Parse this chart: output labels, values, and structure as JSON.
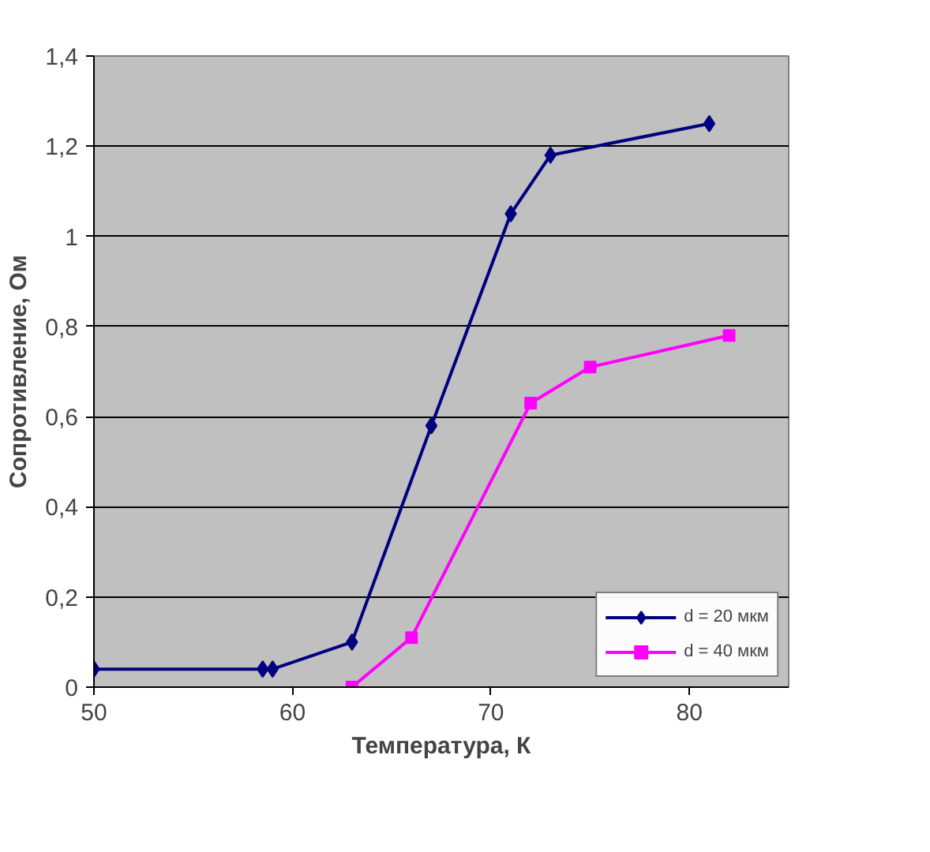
{
  "chart_data": {
    "type": "line",
    "xlabel": "Температура, К",
    "ylabel": "Сопротивление, Ом",
    "xlim": [
      50,
      85
    ],
    "xticks": [
      50,
      60,
      70,
      80
    ],
    "ylim": [
      0,
      1.4
    ],
    "yticks": [
      0,
      {
        "value": 0.2,
        "label": "0,2"
      },
      {
        "value": 0.4,
        "label": "0,4"
      },
      {
        "value": 0.6,
        "label": "0,6"
      },
      {
        "value": 0.8,
        "label": "0,8"
      },
      1,
      {
        "value": 1.2,
        "label": "1,2"
      },
      {
        "value": 1.4,
        "label": "1,4"
      }
    ],
    "grid": "y",
    "legend": "bottom right",
    "line_style": "solid",
    "series": [
      {
        "name": "d = 20 мкм",
        "color": "#000080",
        "marker": "diamond",
        "x": [
          50,
          58.5,
          59,
          63,
          67,
          71,
          73,
          81
        ],
        "values": [
          0.04,
          0.04,
          0.04,
          0.1,
          0.58,
          1.05,
          1.18,
          1.25
        ]
      },
      {
        "name": "d = 40 мкм",
        "color": "#ff00ff",
        "marker": "square",
        "x": [
          63,
          66,
          72,
          75,
          82
        ],
        "values": [
          0,
          0.11,
          0.63,
          0.71,
          0.78
        ]
      }
    ]
  }
}
